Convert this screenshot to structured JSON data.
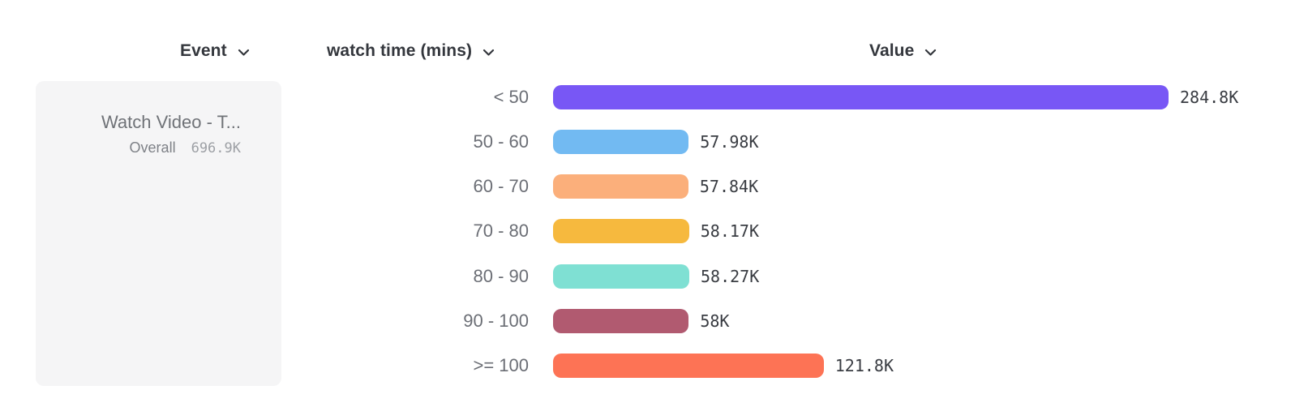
{
  "header": {
    "columns": [
      {
        "label": "Event"
      },
      {
        "label": "watch time (mins)"
      },
      {
        "label": "Value"
      }
    ]
  },
  "event_panel": {
    "title": "Watch Video - T...",
    "overall_label": "Overall",
    "overall_value": "696.9K"
  },
  "chart_data": {
    "type": "bar",
    "orientation": "horizontal",
    "title": "",
    "xlabel": "Value",
    "ylabel": "watch time (mins)",
    "grid": false,
    "legend": false,
    "categories": [
      "< 50",
      "50 - 60",
      "60 - 70",
      "70 - 80",
      "80 - 90",
      "90 - 100",
      ">= 100"
    ],
    "values": [
      284800,
      57980,
      57840,
      58170,
      58270,
      58000,
      121800
    ],
    "value_labels": [
      "284.8K",
      "57.98K",
      "57.84K",
      "58.17K",
      "58.27K",
      "58K",
      "121.8K"
    ],
    "bar_colors": [
      "#7857f5",
      "#72baf2",
      "#fbaf7b",
      "#f6b93e",
      "#7fe0d3",
      "#b15a70",
      "#fd7355"
    ],
    "overall_total": "696.9K"
  },
  "colors": {
    "background": "#ffffff",
    "panel_bg": "#f5f5f6",
    "header_text": "#34373d",
    "row_label_text": "#6b6e75",
    "value_text": "#393c42"
  }
}
